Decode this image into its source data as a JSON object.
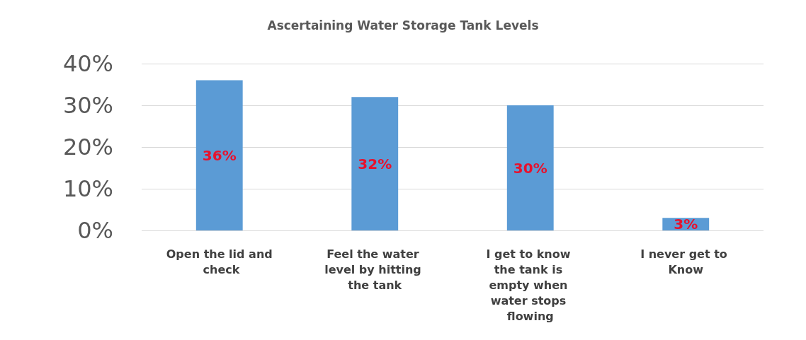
{
  "chart_data": {
    "type": "bar",
    "title": "Ascertaining Water Storage Tank Levels",
    "categories": [
      "Open the lid and check",
      "Feel the water level by hitting the tank",
      "I get to know the tank is empty when water stops flowing",
      "I never get to Know"
    ],
    "values": [
      36,
      32,
      30,
      3
    ],
    "color": "#5b9bd5",
    "value_labels": [
      "36%",
      "32%",
      "30%",
      "3%"
    ],
    "ylim": [
      0,
      40
    ],
    "yticks": [
      {
        "value": 0,
        "label": "0%"
      },
      {
        "value": 10,
        "label": "10%"
      },
      {
        "value": 20,
        "label": "20%"
      },
      {
        "value": 30,
        "label": "30%"
      },
      {
        "value": 40,
        "label": "40%"
      }
    ],
    "grid": "y"
  }
}
